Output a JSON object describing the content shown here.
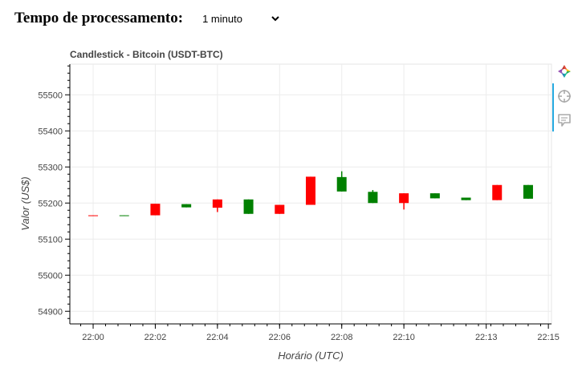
{
  "header": {
    "title": "Tempo de processamento:",
    "interval_selected": "1 minuto"
  },
  "toolbar": {
    "tools": [
      "bokeh-logo-icon",
      "crosshair-icon",
      "hover-tooltip-icon"
    ]
  },
  "colors": {
    "up": "#008000",
    "down": "#ff0000",
    "toolbar_active": "#26aae1"
  },
  "chart_data": {
    "type": "candlestick",
    "title": "Candlestick - Bitcoin (USDT-BTC)",
    "xlabel": "Horário (UTC)",
    "ylabel": "Valor (US$)",
    "ylim": [
      54865,
      55585
    ],
    "yticks": [
      54900,
      55000,
      55100,
      55200,
      55300,
      55400,
      55500
    ],
    "xticks": [
      "22:00",
      "22:02",
      "22:04",
      "22:06",
      "22:08",
      "22:10",
      "22:13",
      "22:15"
    ],
    "xtick_minutes": [
      0,
      2,
      4,
      6,
      8,
      10,
      12.65,
      14.65
    ],
    "xlim_minutes": [
      -0.75,
      14.75
    ],
    "grid": true,
    "candles": [
      {
        "t": 0,
        "open": 55166,
        "close": 55165,
        "high": 55166,
        "low": 55165
      },
      {
        "t": 1,
        "open": 55165,
        "close": 55166,
        "high": 55166,
        "low": 55165
      },
      {
        "t": 2,
        "open": 55198,
        "close": 55166,
        "high": 55198,
        "low": 55166
      },
      {
        "t": 3,
        "open": 55188,
        "close": 55197,
        "high": 55197,
        "low": 55188
      },
      {
        "t": 4,
        "open": 55210,
        "close": 55187,
        "high": 55210,
        "low": 55175
      },
      {
        "t": 5,
        "open": 55170,
        "close": 55210,
        "high": 55210,
        "low": 55170
      },
      {
        "t": 6,
        "open": 55195,
        "close": 55170,
        "high": 55195,
        "low": 55170
      },
      {
        "t": 7,
        "open": 55273,
        "close": 55195,
        "high": 55273,
        "low": 55195
      },
      {
        "t": 8,
        "open": 55232,
        "close": 55272,
        "high": 55288,
        "low": 55232
      },
      {
        "t": 9,
        "open": 55200,
        "close": 55231,
        "high": 55236,
        "low": 55200
      },
      {
        "t": 10,
        "open": 55227,
        "close": 55200,
        "high": 55227,
        "low": 55182
      },
      {
        "t": 11,
        "open": 55213,
        "close": 55227,
        "high": 55227,
        "low": 55213
      },
      {
        "t": 12,
        "open": 55208,
        "close": 55215,
        "high": 55215,
        "low": 55208
      },
      {
        "t": 13,
        "open": 55250,
        "close": 55208,
        "high": 55250,
        "low": 55208
      },
      {
        "t": 14,
        "open": 55212,
        "close": 55250,
        "high": 55250,
        "low": 55212
      }
    ]
  }
}
